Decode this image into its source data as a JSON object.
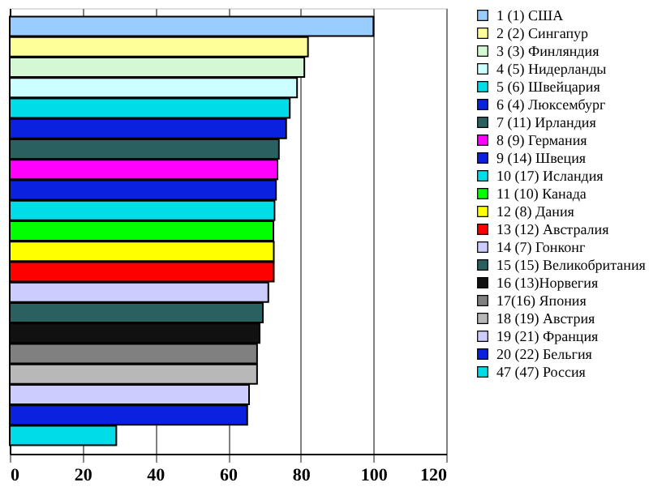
{
  "chart_data": {
    "type": "bar",
    "orientation": "horizontal",
    "categories": [
      null
    ],
    "series": [
      {
        "name": "1 (1) США",
        "color": "#99ccff",
        "values": [
          100
        ]
      },
      {
        "name": "2 (2) Сингапур",
        "color": "#ffff99",
        "values": [
          82
        ]
      },
      {
        "name": "3 (3) Финляндия",
        "color": "#d4f7d4",
        "values": [
          81
        ]
      },
      {
        "name": "4 (5) Нидерланды",
        "color": "#ccffff",
        "values": [
          79
        ]
      },
      {
        "name": "5 (6) Швейцария",
        "color": "#00dde8",
        "values": [
          77
        ]
      },
      {
        "name": "6 (4) Люксембург",
        "color": "#0a22e0",
        "values": [
          76
        ]
      },
      {
        "name": "7 (11) Ирландия",
        "color": "#2a6060",
        "values": [
          74
        ]
      },
      {
        "name": "8 (9) Германия",
        "color": "#ff00ff",
        "values": [
          73.6
        ]
      },
      {
        "name": "9 (14) Швеция",
        "color": "#0a22e0",
        "values": [
          73.2
        ]
      },
      {
        "name": "10 (17) Исландия",
        "color": "#00dde8",
        "values": [
          72.8
        ]
      },
      {
        "name": "11 (10) Канада",
        "color": "#00ff00",
        "values": [
          72.5
        ]
      },
      {
        "name": "12 (8) Дания",
        "color": "#ffff00",
        "values": [
          72.6
        ]
      },
      {
        "name": "13 (12) Австралия",
        "color": "#ff0000",
        "values": [
          72.6
        ]
      },
      {
        "name": "14 (7) Гонконг",
        "color": "#ccccff",
        "values": [
          71.1
        ]
      },
      {
        "name": "15 (15) Великобритания",
        "color": "#2a6060",
        "values": [
          69.6
        ]
      },
      {
        "name": "16 (13)Норвегия",
        "color": "#111111",
        "values": [
          68.7
        ]
      },
      {
        "name": "17(16) Япония",
        "color": "#808080",
        "values": [
          68
        ]
      },
      {
        "name": "18 (19) Австрия",
        "color": "#b8b8b8",
        "values": [
          68
        ]
      },
      {
        "name": "19 (21) Франция",
        "color": "#ccccff",
        "values": [
          65.8
        ]
      },
      {
        "name": "20 (22) Бельгия",
        "color": "#0a22e0",
        "values": [
          65.3
        ]
      },
      {
        "name": "47 (47) Россия",
        "color": "#00dde8",
        "values": [
          29.3
        ]
      }
    ],
    "xlim": [
      0,
      120
    ],
    "xticks": [
      0,
      20,
      40,
      60,
      80,
      100,
      120
    ],
    "grid": "x",
    "legend": "right",
    "tick_labels": "x"
  }
}
